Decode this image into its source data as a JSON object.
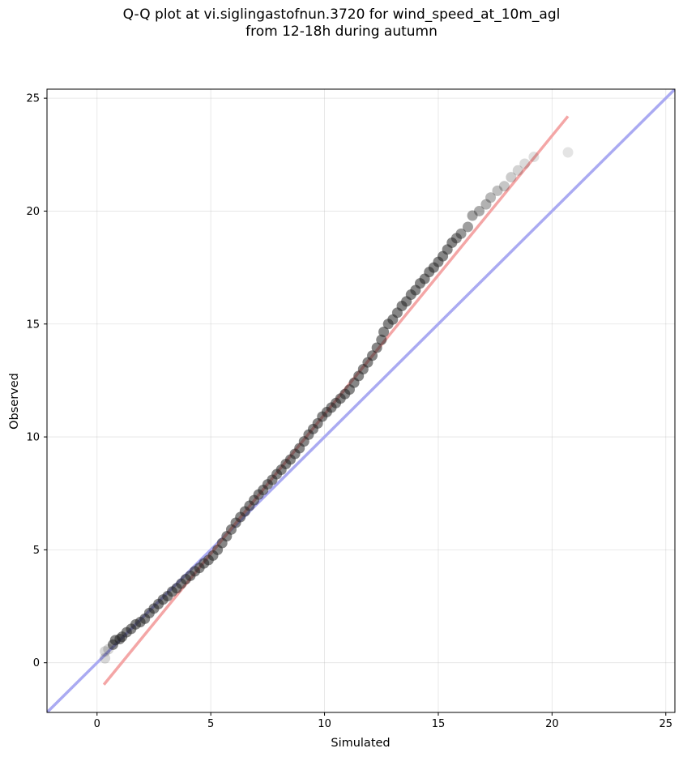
{
  "chart_data": {
    "type": "scatter",
    "title_line1": "Q-Q plot at vi.siglingastofnun.3720 for wind_speed_at_10m_agl",
    "title_line2": "from 12-18h during autumn",
    "xlabel": "Simulated",
    "ylabel": "Observed",
    "xlim": [
      -2.2,
      25.4
    ],
    "ylim": [
      -2.2,
      25.4
    ],
    "xticks": [
      "0",
      "5",
      "10",
      "15",
      "20",
      "25"
    ],
    "yticks": [
      "0",
      "5",
      "10",
      "15",
      "20",
      "25"
    ],
    "grid": true,
    "reference_line": {
      "from": [
        -2.2,
        -2.2
      ],
      "to": [
        25.4,
        25.4
      ],
      "color": "#aaaaf2"
    },
    "fit_line": {
      "from": [
        0.3,
        -0.97
      ],
      "to": [
        20.7,
        24.2
      ],
      "color": "#f4a6a6"
    },
    "point_color": "#222222",
    "points": [
      [
        0.35,
        0.2
      ],
      [
        0.35,
        0.5
      ],
      [
        0.5,
        0.6
      ],
      [
        0.7,
        0.8
      ],
      [
        0.8,
        1.0
      ],
      [
        1.0,
        1.05
      ],
      [
        1.1,
        1.15
      ],
      [
        1.3,
        1.35
      ],
      [
        1.5,
        1.5
      ],
      [
        1.7,
        1.7
      ],
      [
        1.9,
        1.8
      ],
      [
        2.1,
        1.95
      ],
      [
        2.3,
        2.2
      ],
      [
        2.5,
        2.4
      ],
      [
        2.7,
        2.6
      ],
      [
        2.9,
        2.8
      ],
      [
        3.1,
        2.95
      ],
      [
        3.3,
        3.15
      ],
      [
        3.5,
        3.3
      ],
      [
        3.7,
        3.5
      ],
      [
        3.9,
        3.7
      ],
      [
        4.1,
        3.85
      ],
      [
        4.3,
        4.05
      ],
      [
        4.5,
        4.2
      ],
      [
        4.7,
        4.4
      ],
      [
        4.9,
        4.55
      ],
      [
        5.1,
        4.75
      ],
      [
        5.3,
        5.0
      ],
      [
        5.5,
        5.3
      ],
      [
        5.7,
        5.6
      ],
      [
        5.9,
        5.9
      ],
      [
        6.1,
        6.2
      ],
      [
        6.3,
        6.45
      ],
      [
        6.5,
        6.7
      ],
      [
        6.7,
        6.95
      ],
      [
        6.9,
        7.2
      ],
      [
        7.1,
        7.45
      ],
      [
        7.3,
        7.65
      ],
      [
        7.5,
        7.9
      ],
      [
        7.7,
        8.1
      ],
      [
        7.9,
        8.35
      ],
      [
        8.1,
        8.55
      ],
      [
        8.3,
        8.8
      ],
      [
        8.5,
        9.0
      ],
      [
        8.7,
        9.25
      ],
      [
        8.9,
        9.5
      ],
      [
        9.1,
        9.8
      ],
      [
        9.3,
        10.1
      ],
      [
        9.5,
        10.35
      ],
      [
        9.7,
        10.6
      ],
      [
        9.9,
        10.9
      ],
      [
        10.1,
        11.1
      ],
      [
        10.3,
        11.3
      ],
      [
        10.5,
        11.5
      ],
      [
        10.7,
        11.7
      ],
      [
        10.9,
        11.9
      ],
      [
        11.1,
        12.1
      ],
      [
        11.3,
        12.4
      ],
      [
        11.5,
        12.7
      ],
      [
        11.7,
        13.0
      ],
      [
        11.9,
        13.3
      ],
      [
        12.1,
        13.6
      ],
      [
        12.3,
        13.95
      ],
      [
        12.5,
        14.3
      ],
      [
        12.6,
        14.65
      ],
      [
        12.8,
        15.0
      ],
      [
        13.0,
        15.2
      ],
      [
        13.2,
        15.5
      ],
      [
        13.4,
        15.8
      ],
      [
        13.6,
        16.0
      ],
      [
        13.8,
        16.3
      ],
      [
        14.0,
        16.5
      ],
      [
        14.2,
        16.8
      ],
      [
        14.4,
        17.0
      ],
      [
        14.6,
        17.3
      ],
      [
        14.8,
        17.5
      ],
      [
        15.0,
        17.75
      ],
      [
        15.2,
        18.0
      ],
      [
        15.4,
        18.3
      ],
      [
        15.6,
        18.6
      ],
      [
        15.8,
        18.8
      ],
      [
        16.0,
        19.0
      ],
      [
        16.3,
        19.3
      ],
      [
        16.5,
        19.8
      ],
      [
        16.8,
        20.0
      ],
      [
        17.1,
        20.3
      ],
      [
        17.3,
        20.6
      ],
      [
        17.6,
        20.9
      ],
      [
        17.9,
        21.1
      ],
      [
        18.2,
        21.5
      ],
      [
        18.5,
        21.8
      ],
      [
        18.8,
        22.1
      ],
      [
        19.2,
        22.4
      ],
      [
        20.7,
        22.6
      ]
    ]
  }
}
